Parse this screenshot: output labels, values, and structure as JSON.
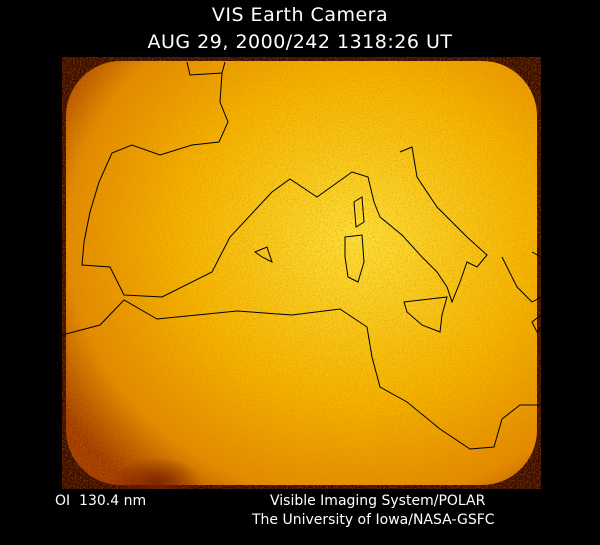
{
  "header": {
    "title": "VIS Earth Camera",
    "timestamp": "AUG 29, 2000/242 1318:26 UT"
  },
  "footer": {
    "wavelength": "OI  130.4 nm",
    "instrument": "Visible Imaging System/POLAR",
    "credit": "The University of Iowa/NASA-GSFC"
  },
  "image": {
    "colormap": [
      "#3a0a00",
      "#b84a00",
      "#f0a000",
      "#ffe040"
    ],
    "coastline_color": "#000000"
  }
}
